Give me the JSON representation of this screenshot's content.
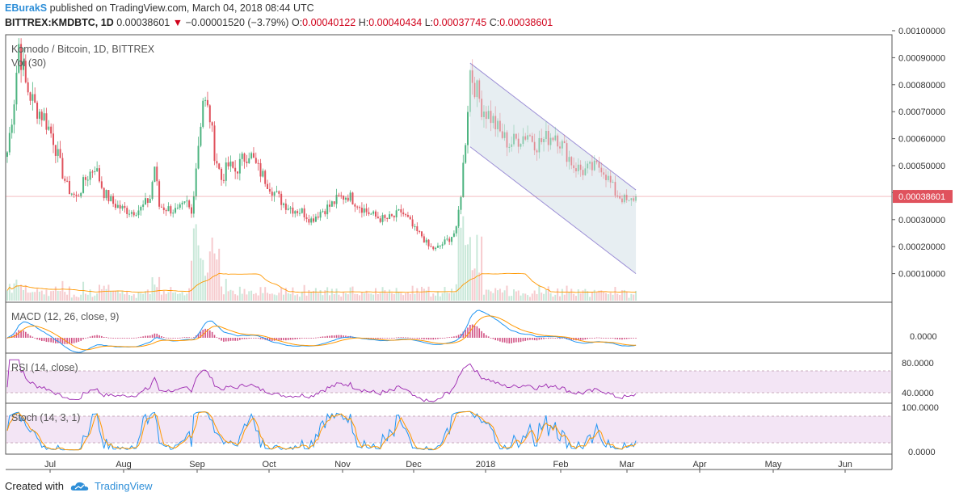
{
  "header": {
    "user": "EBurakS",
    "published": "published on TradingView.com, March 04, 2018 08:44 UTC",
    "symbol": "BITTREX:KMDBTC, 1D",
    "last": "0.00038601",
    "change": "−0.00001520 (−3.79%)",
    "o_label": "O:",
    "o": "0.00040122",
    "h_label": "H:",
    "h": "0.00040434",
    "l_label": "L:",
    "l": "0.00037745",
    "c_label": "C:",
    "c": "0.00038601"
  },
  "panes": {
    "main_title": "Komodo / Bitcoin, 1D, BITTREX",
    "vol_label": "Vol (30)",
    "macd_label": "MACD (12, 26, close, 9)",
    "rsi_label": "RSI (14, close)",
    "stoch_label": "Stoch (14, 3, 1)"
  },
  "footer": {
    "created": "Created with",
    "brand": "TradingView"
  },
  "colors": {
    "up": "#4db480",
    "down": "#e0525d",
    "macd": "#2196f3",
    "signal": "#ff9800",
    "hist": "#c2185b",
    "rsi": "#9c27b0",
    "band": "#f3e5f5",
    "price_line": "#e0525d"
  },
  "chart_data": {
    "type": "candlestick",
    "title": "Komodo / Bitcoin, 1D, BITTREX",
    "price_axis_ticks": [
      "0.00100000",
      "0.00090000",
      "0.00080000",
      "0.00070000",
      "0.00060000",
      "0.00050000",
      "0.00040000",
      "0.00030000",
      "0.00020000",
      "0.00010000"
    ],
    "price_axis_values": [
      0.001,
      0.0009,
      0.0008,
      0.0007,
      0.0006,
      0.0005,
      0.0004,
      0.0003,
      0.0002,
      0.0001
    ],
    "last_price_label": "0.00038601",
    "macd_ticks": [
      "0.0000"
    ],
    "rsi_ticks": [
      "80.0000",
      "40.0000"
    ],
    "stoch_ticks": [
      "100.0000",
      "0.0000"
    ],
    "x_labels": [
      "Jul",
      "Aug",
      "Sep",
      "Oct",
      "Nov",
      "Dec",
      "2018",
      "Feb",
      "Mar",
      "Apr",
      "May",
      "Jun"
    ],
    "close_path": [
      [
        0,
        0.00055
      ],
      [
        3,
        0.00075
      ],
      [
        5,
        0.00095
      ],
      [
        8,
        0.0008
      ],
      [
        12,
        0.00072
      ],
      [
        16,
        0.00068
      ],
      [
        20,
        0.0006
      ],
      [
        23,
        0.0005
      ],
      [
        26,
        0.00042
      ],
      [
        30,
        0.00038
      ],
      [
        34,
        0.00045
      ],
      [
        38,
        0.0005
      ],
      [
        42,
        0.0004
      ],
      [
        46,
        0.00036
      ],
      [
        50,
        0.00034
      ],
      [
        54,
        0.00033
      ],
      [
        58,
        0.00034
      ],
      [
        62,
        0.00038
      ],
      [
        64,
        0.0005
      ],
      [
        66,
        0.00035
      ],
      [
        70,
        0.00034
      ],
      [
        74,
        0.00033
      ],
      [
        78,
        0.00036
      ],
      [
        80,
        0.00032
      ],
      [
        82,
        0.0005
      ],
      [
        85,
        0.00075
      ],
      [
        88,
        0.00068
      ],
      [
        90,
        0.00055
      ],
      [
        93,
        0.00045
      ],
      [
        96,
        0.0005
      ],
      [
        99,
        0.00048
      ],
      [
        102,
        0.00052
      ],
      [
        105,
        0.00055
      ],
      [
        108,
        0.0005
      ],
      [
        112,
        0.00045
      ],
      [
        116,
        0.0004
      ],
      [
        120,
        0.00036
      ],
      [
        124,
        0.00034
      ],
      [
        128,
        0.00033
      ],
      [
        132,
        0.0003
      ],
      [
        136,
        0.00033
      ],
      [
        140,
        0.00035
      ],
      [
        144,
        0.00038
      ],
      [
        148,
        0.00039
      ],
      [
        152,
        0.00036
      ],
      [
        156,
        0.00033
      ],
      [
        160,
        0.00031
      ],
      [
        164,
        0.0003
      ],
      [
        168,
        0.00031
      ],
      [
        171,
        0.00033
      ],
      [
        174,
        0.0003
      ],
      [
        177,
        0.00026
      ],
      [
        180,
        0.00024
      ],
      [
        183,
        0.0002
      ],
      [
        186,
        0.00019
      ],
      [
        189,
        0.00021
      ],
      [
        192,
        0.00023
      ],
      [
        195,
        0.00026
      ],
      [
        197,
        0.0004
      ],
      [
        199,
        0.0006
      ],
      [
        201,
        0.00085
      ],
      [
        203,
        0.0008
      ],
      [
        206,
        0.00072
      ],
      [
        210,
        0.00068
      ],
      [
        214,
        0.00062
      ],
      [
        218,
        0.00058
      ],
      [
        222,
        0.0006
      ],
      [
        226,
        0.00062
      ],
      [
        230,
        0.00058
      ],
      [
        234,
        0.0006
      ],
      [
        238,
        0.00062
      ],
      [
        242,
        0.00056
      ],
      [
        246,
        0.0005
      ],
      [
        250,
        0.00048
      ],
      [
        254,
        0.00049
      ],
      [
        258,
        0.0005
      ],
      [
        261,
        0.00045
      ],
      [
        264,
        0.0004
      ],
      [
        267,
        0.00038
      ],
      [
        270,
        0.00036
      ],
      [
        272,
        0.00038
      ],
      [
        273,
        0.00038601
      ]
    ],
    "channel": {
      "upper": [
        [
          201,
          0.00088
        ],
        [
          273,
          0.00041
        ]
      ],
      "lower": [
        [
          201,
          0.00057
        ],
        [
          273,
          0.0001
        ]
      ]
    },
    "volume_note": "Vol (30) histogram with orange 30-period MA"
  }
}
